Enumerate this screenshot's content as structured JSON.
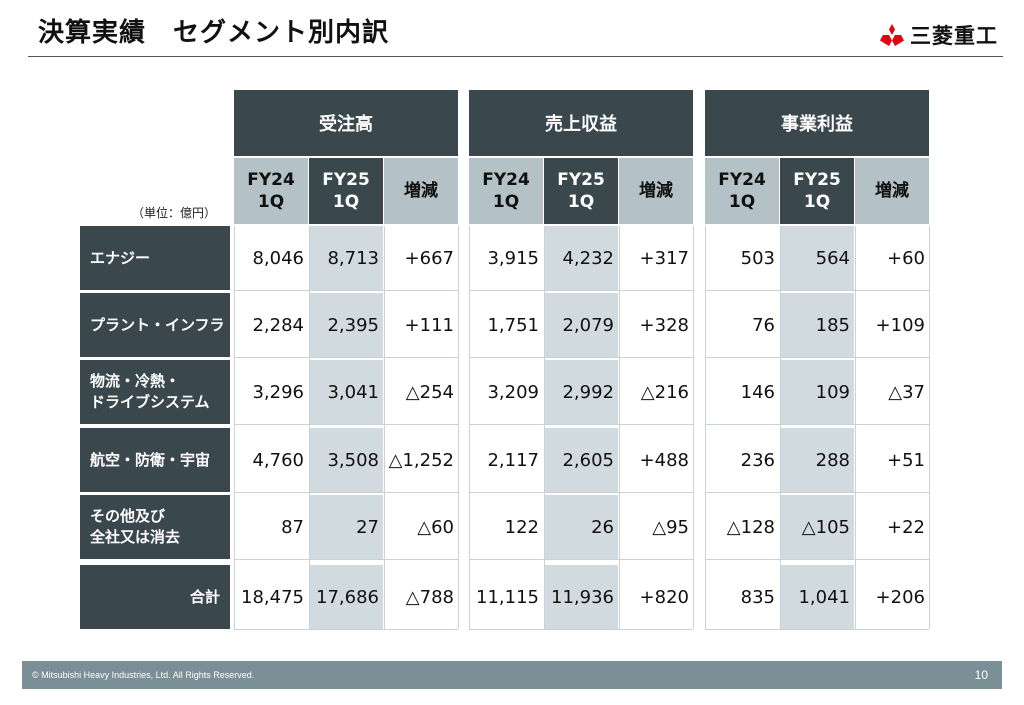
{
  "title": "決算実績　セグメント別内訳",
  "brand": {
    "name": "三菱重工",
    "logo_color": "#e60012"
  },
  "unit_label": "（単位：億円）",
  "groups": [
    {
      "label": "受注高"
    },
    {
      "label": "売上収益"
    },
    {
      "label": "事業利益"
    }
  ],
  "sub_headers": {
    "fy24_line1": "FY24",
    "fy24_line2": "1Q",
    "fy25_line1": "FY25",
    "fy25_line2": "1Q",
    "diff": "増減"
  },
  "rows": [
    {
      "label1": "エナジー",
      "label2": "",
      "values": [
        "8,046",
        "8,713",
        "+667",
        "3,915",
        "4,232",
        "+317",
        "503",
        "564",
        "+60"
      ]
    },
    {
      "label1": "プラント・インフラ",
      "label2": "",
      "values": [
        "2,284",
        "2,395",
        "+111",
        "1,751",
        "2,079",
        "+328",
        "76",
        "185",
        "+109"
      ]
    },
    {
      "label1": "物流・冷熱・",
      "label2": "ドライブシステム",
      "values": [
        "3,296",
        "3,041",
        "△254",
        "3,209",
        "2,992",
        "△216",
        "146",
        "109",
        "△37"
      ]
    },
    {
      "label1": "航空・防衛・宇宙",
      "label2": "",
      "values": [
        "4,760",
        "3,508",
        "△1,252",
        "2,117",
        "2,605",
        "+488",
        "236",
        "288",
        "+51"
      ]
    },
    {
      "label1": "その他及び",
      "label2": "全社又は消去",
      "values": [
        "87",
        "27",
        "△60",
        "122",
        "26",
        "△95",
        "△128",
        "△105",
        "+22"
      ]
    },
    {
      "label1": "合計",
      "label2": "",
      "values": [
        "18,475",
        "17,686",
        "△788",
        "11,115",
        "11,936",
        "+820",
        "835",
        "1,041",
        "+206"
      ]
    }
  ],
  "footer": {
    "copyright": "© Mitsubishi Heavy Industries, Ltd.  All Rights Reserved.",
    "page": "10"
  },
  "colors": {
    "header_dark": "#3a474d",
    "header_light": "#b4c2c7",
    "fy25_shade": "#d1dade",
    "footer": "#7b8f96"
  }
}
